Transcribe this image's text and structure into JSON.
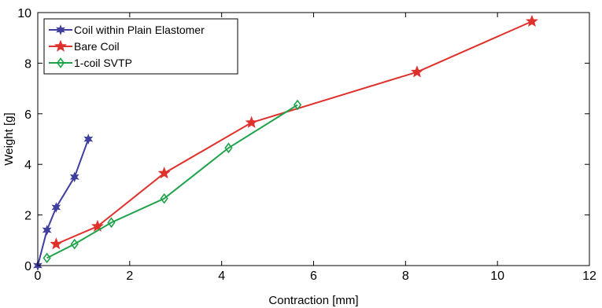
{
  "chart_data": {
    "type": "line",
    "xlabel": "Contraction [mm]",
    "ylabel": "Weight [g]",
    "xlim": [
      0,
      12
    ],
    "ylim": [
      0,
      10
    ],
    "xticks": [
      0,
      2,
      4,
      6,
      8,
      10,
      12
    ],
    "yticks": [
      0,
      2,
      4,
      6,
      8,
      10
    ],
    "grid": false,
    "legend_position": "top-left",
    "series": [
      {
        "name": "Coil within Plain Elastomer",
        "color": "#3f3f9f",
        "marker": "asterisk-star",
        "x": [
          0,
          0.2,
          0.4,
          0.8,
          1.1
        ],
        "y": [
          0,
          1.4,
          2.3,
          3.5,
          5.0
        ]
      },
      {
        "name": "Bare Coil",
        "color": "#e0302b",
        "marker": "pentagram",
        "x": [
          0.4,
          1.3,
          2.75,
          4.65,
          8.25,
          10.75
        ],
        "y": [
          0.85,
          1.55,
          3.65,
          5.65,
          7.65,
          9.65
        ]
      },
      {
        "name": "1-coil SVTP",
        "color": "#1ea34a",
        "marker": "diamond",
        "x": [
          0.2,
          0.8,
          1.6,
          2.75,
          4.15,
          5.65
        ],
        "y": [
          0.3,
          0.85,
          1.7,
          2.65,
          4.65,
          6.35
        ]
      }
    ]
  }
}
